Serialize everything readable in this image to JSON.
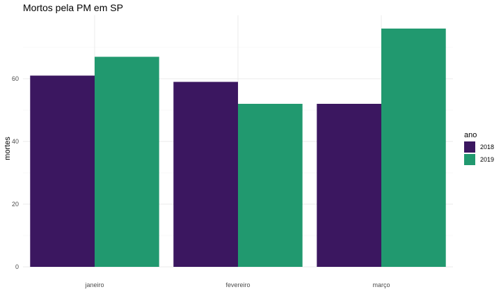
{
  "chart_data": {
    "type": "bar",
    "title": "Mortos pela PM em SP",
    "xlabel": "",
    "ylabel": "mortes",
    "categories": [
      "janeiro",
      "fevereiro",
      "março"
    ],
    "series": [
      {
        "name": "2018",
        "color": "#3b1760",
        "values": [
          61,
          59,
          52
        ]
      },
      {
        "name": "2019",
        "color": "#21996f",
        "values": [
          67,
          52,
          76
        ]
      }
    ],
    "ylim": [
      0,
      78
    ],
    "yticks": [
      0,
      20,
      40,
      60
    ],
    "ytick_labels": [
      "0",
      "20",
      "40",
      "60"
    ],
    "grid": true,
    "legend": {
      "title": "ano",
      "position": "right"
    }
  }
}
